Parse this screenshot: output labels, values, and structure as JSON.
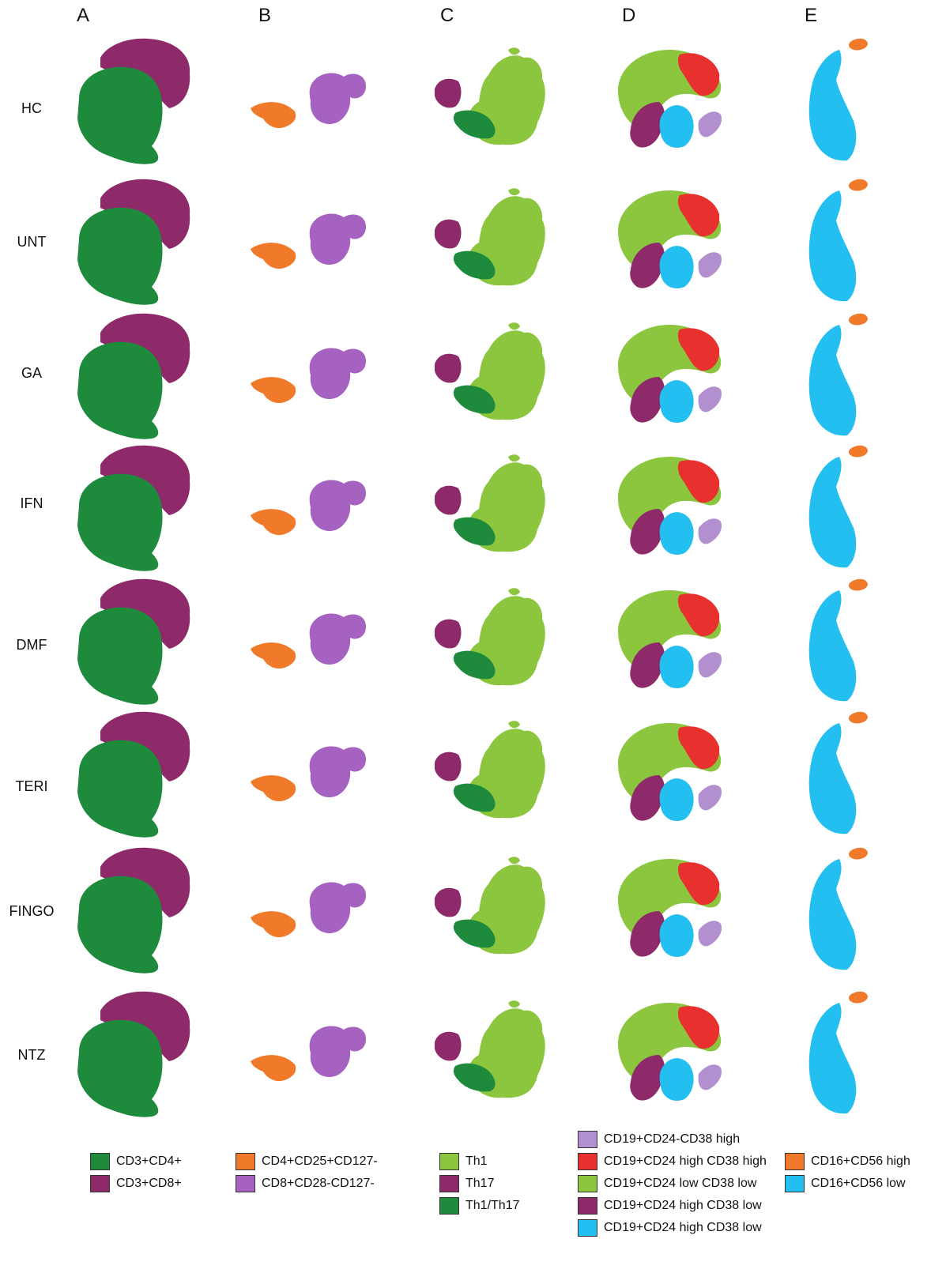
{
  "columns": [
    "A",
    "B",
    "C",
    "D",
    "E"
  ],
  "rows": [
    "HC",
    "UNT",
    "GA",
    "IFN",
    "DMF",
    "TERI",
    "FINGO",
    "NTZ"
  ],
  "colors": {
    "cd4": "#1e8a3c",
    "cd8": "#8e2a6a",
    "treg": "#f07a2a",
    "cd8cd28": "#a562c0",
    "th1": "#8cc63f",
    "th17": "#8e2a6a",
    "th1th17": "#1e8a3c",
    "b_cd24_cd38hi": "#b28fcf",
    "b_cd24hi_cd38hi": "#e8312e",
    "b_cd24lo_cd38lo": "#8cc63f",
    "b_cd24hi_cd38lo": "#8e2a6a",
    "b_cd24hi_cd38lo_b": "#22bff0",
    "nk_hi": "#f07a2a",
    "nk_lo": "#22bff0"
  },
  "legends": {
    "A": [
      {
        "label": "CD3+CD4+",
        "color": "#1e8a3c"
      },
      {
        "label": "CD3+CD8+",
        "color": "#8e2a6a"
      }
    ],
    "B": [
      {
        "label": "CD4+CD25+CD127-",
        "color": "#f07a2a"
      },
      {
        "label": "CD8+CD28-CD127-",
        "color": "#a562c0"
      }
    ],
    "C": [
      {
        "label": "Th1",
        "color": "#8cc63f"
      },
      {
        "label": "Th17",
        "color": "#8e2a6a"
      },
      {
        "label": "Th1/Th17",
        "color": "#1e8a3c"
      }
    ],
    "D": [
      {
        "label": "CD19+CD24-CD38 high",
        "color": "#b28fcf"
      },
      {
        "label": "CD19+CD24 high CD38 high",
        "color": "#e8312e"
      },
      {
        "label": "CD19+CD24 low CD38 low",
        "color": "#8cc63f"
      },
      {
        "label": "CD19+CD24 high CD38 low",
        "color": "#8e2a6a"
      },
      {
        "label": "CD19+CD24 high CD38 low",
        "color": "#22bff0"
      }
    ],
    "E": [
      {
        "label": "CD16+CD56 high",
        "color": "#f07a2a"
      },
      {
        "label": "CD16+CD56 low",
        "color": "#22bff0"
      }
    ]
  }
}
